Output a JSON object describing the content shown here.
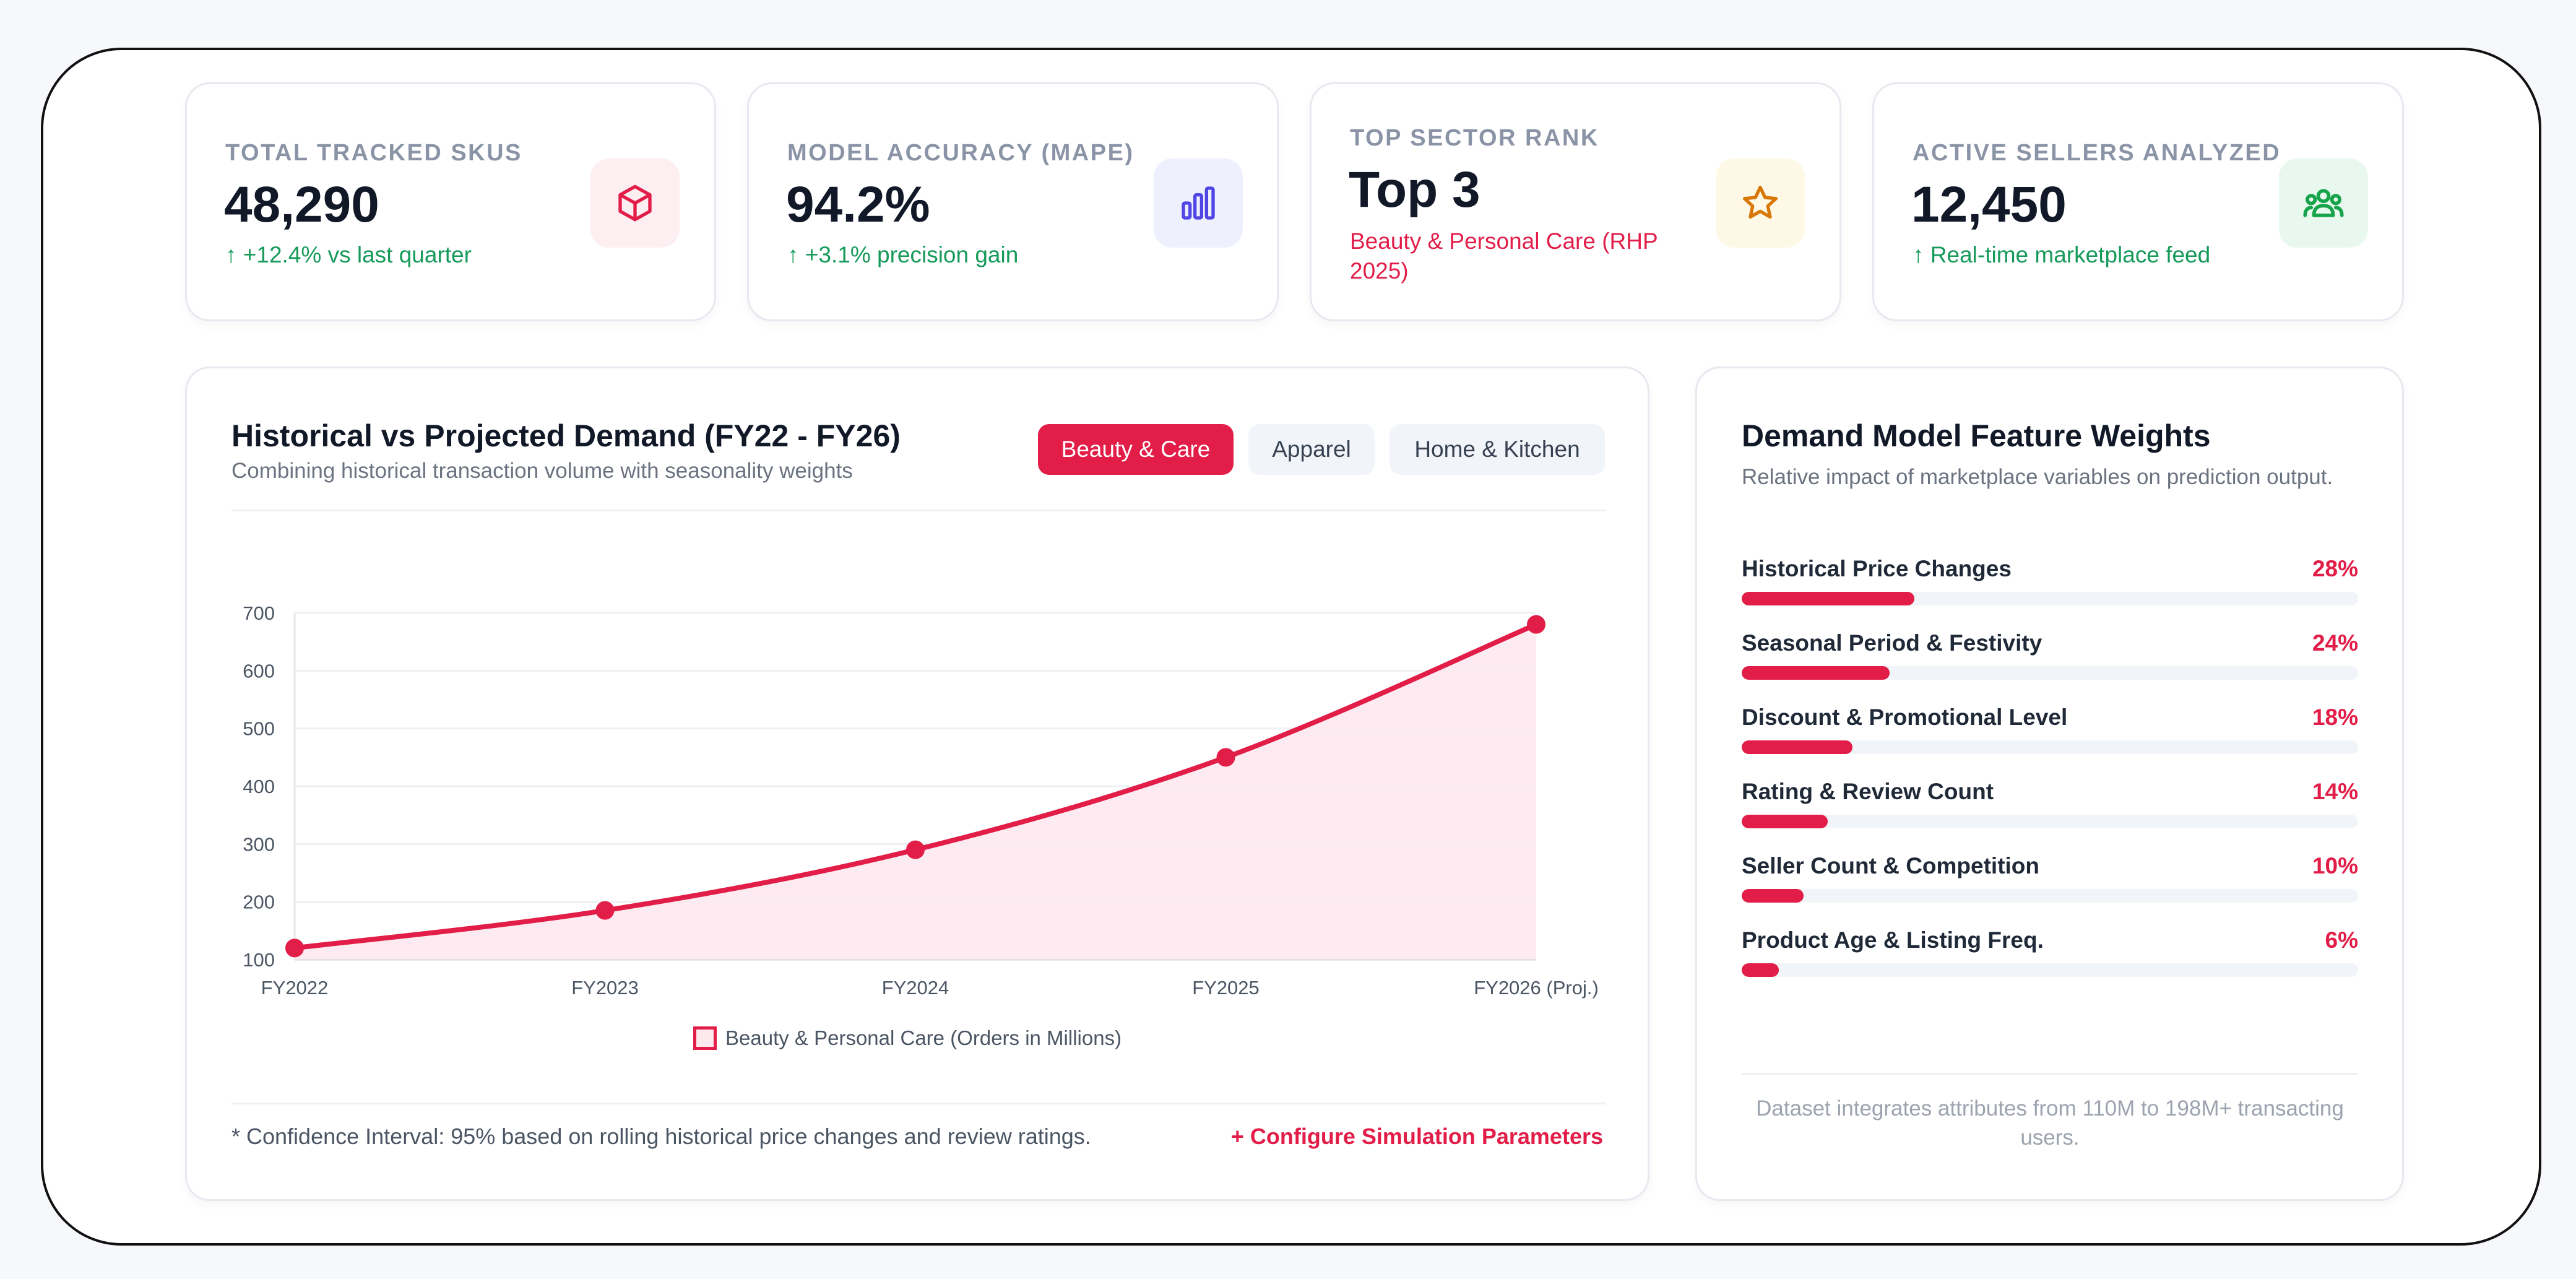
{
  "kpis": [
    {
      "label": "TOTAL TRACKED SKUS",
      "value": "48,290",
      "sub": "↑ +12.4% vs last quarter",
      "icon": "box-icon",
      "color": "#e11d48",
      "bg": "#fdeef1"
    },
    {
      "label": "MODEL ACCURACY (MAPE)",
      "value": "94.2%",
      "sub": "↑ +3.1% precision gain",
      "icon": "bar-chart-icon",
      "color": "#4f46e5",
      "bg": "#eef0fe"
    },
    {
      "label": "TOP SECTOR RANK",
      "value": "Top 3",
      "sub": "Beauty & Personal Care (RHP 2025)",
      "icon": "star-icon",
      "color": "#d97706",
      "bg": "#fef8e6"
    },
    {
      "label": "ACTIVE SELLERS ANALYZED",
      "value": "12,450",
      "sub": "↑ Real-time marketplace feed",
      "icon": "users-icon",
      "color": "#16a34a",
      "bg": "#e8f8ef"
    }
  ],
  "chart_panel": {
    "title": "Historical vs Projected Demand (FY22 - FY26)",
    "subtitle": "Combining historical transaction volume with seasonality weights",
    "tabs": [
      {
        "label": "Beauty & Care",
        "active": true
      },
      {
        "label": "Apparel",
        "active": false
      },
      {
        "label": "Home & Kitchen",
        "active": false
      }
    ],
    "footnote": "* Confidence Interval: 95% based on rolling historical price changes and review ratings.",
    "config_link": "+ Configure Simulation Parameters"
  },
  "chart_data": {
    "type": "line",
    "x": [
      "FY2022",
      "FY2023",
      "FY2024",
      "FY2025",
      "FY2026 (Proj.)"
    ],
    "series": [
      {
        "name": "Beauty & Personal Care (Orders in Millions)",
        "values": [
          120,
          185,
          290,
          450,
          680
        ],
        "color": "#e11d48",
        "fill": "#fde8ee"
      }
    ],
    "ylim": [
      100,
      700
    ],
    "yticks": [
      100,
      200,
      300,
      400,
      500,
      600,
      700
    ],
    "grid": true,
    "legend": "bottom-center"
  },
  "feature_weights": {
    "title": "Demand Model Feature Weights",
    "subtitle": "Relative impact of marketplace variables on prediction output.",
    "items": [
      {
        "name": "Historical Price Changes",
        "pct": "28%",
        "value": 28
      },
      {
        "name": "Seasonal Period & Festivity",
        "pct": "24%",
        "value": 24
      },
      {
        "name": "Discount & Promotional Level",
        "pct": "18%",
        "value": 18
      },
      {
        "name": "Rating & Review Count",
        "pct": "14%",
        "value": 14
      },
      {
        "name": "Seller Count & Competition",
        "pct": "10%",
        "value": 10
      },
      {
        "name": "Product Age & Listing Freq.",
        "pct": "6%",
        "value": 6
      }
    ],
    "note": "Dataset integrates attributes from 110M to 198M+ transacting users."
  }
}
